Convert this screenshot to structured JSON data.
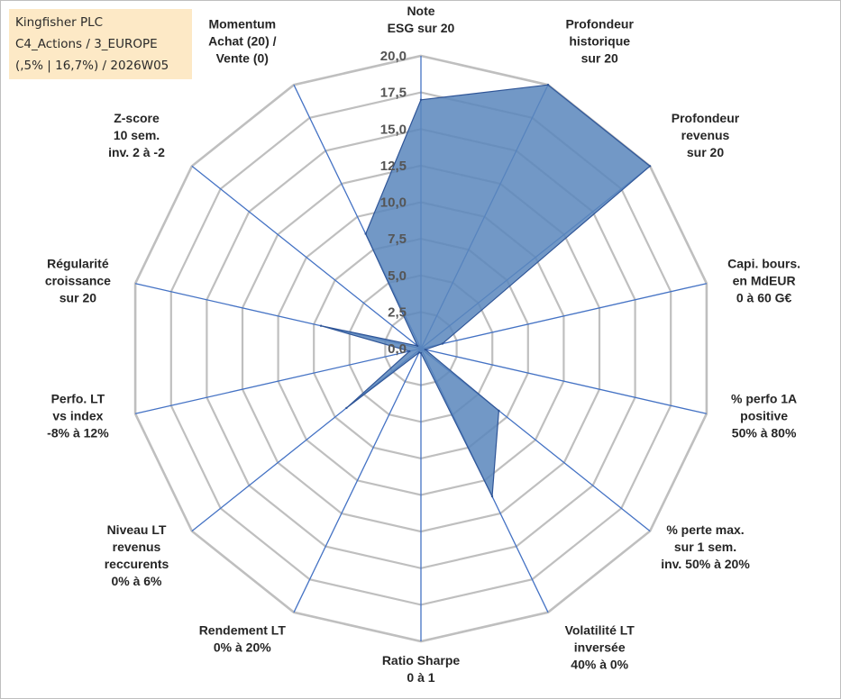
{
  "info": {
    "line1": "Kingfisher PLC",
    "line2": "C4_Actions / 3_EUROPE",
    "line3": "(,5% | 16,7%) / 2026W05"
  },
  "colors": {
    "grid": "#bfbfbf",
    "spoke": "#4472c4",
    "fill": "#5b87bd",
    "stroke": "#2f5597"
  },
  "chart_data": {
    "type": "radar",
    "rmin": 0,
    "rmax": 20,
    "tick_step": 2.5,
    "tick_labels": [
      "0,0",
      "2,5",
      "5,0",
      "7,5",
      "10,0",
      "12,5",
      "15,0",
      "17,5",
      "20,0"
    ],
    "axes": [
      "Note\nESG sur 20",
      "Profondeur\nhistorique\nsur 20",
      "Profondeur\nrevenus\nsur 20",
      "Capi. bours.\nen MdEUR\n0 à 60 G€",
      "% perfo 1A\npositive\n50% à 80%",
      "% perte max.\nsur 1 sem.\ninv. 50% à 20%",
      "Volatilité LT\ninversée\n40% à 0%",
      "Ratio Sharpe\n0 à 1",
      "Rendement LT\n0% à 20%",
      "Niveau LT\nrevenus\nreccurents\n0% à 6%",
      "Perfo. LT\nvs index\n-8% à 12%",
      "Régularité\ncroissance\nsur 20",
      "Z-score\n10 sem.\ninv. 2 à -2",
      "Momentum\nAchat (20) /\nVente (0)"
    ],
    "series": [
      {
        "values": [
          17.0,
          20.0,
          20.0,
          1.5,
          0.3,
          6.8,
          11.2,
          0.3,
          0.3,
          6.5,
          0.8,
          7.0,
          0.3,
          8.7
        ]
      }
    ]
  }
}
